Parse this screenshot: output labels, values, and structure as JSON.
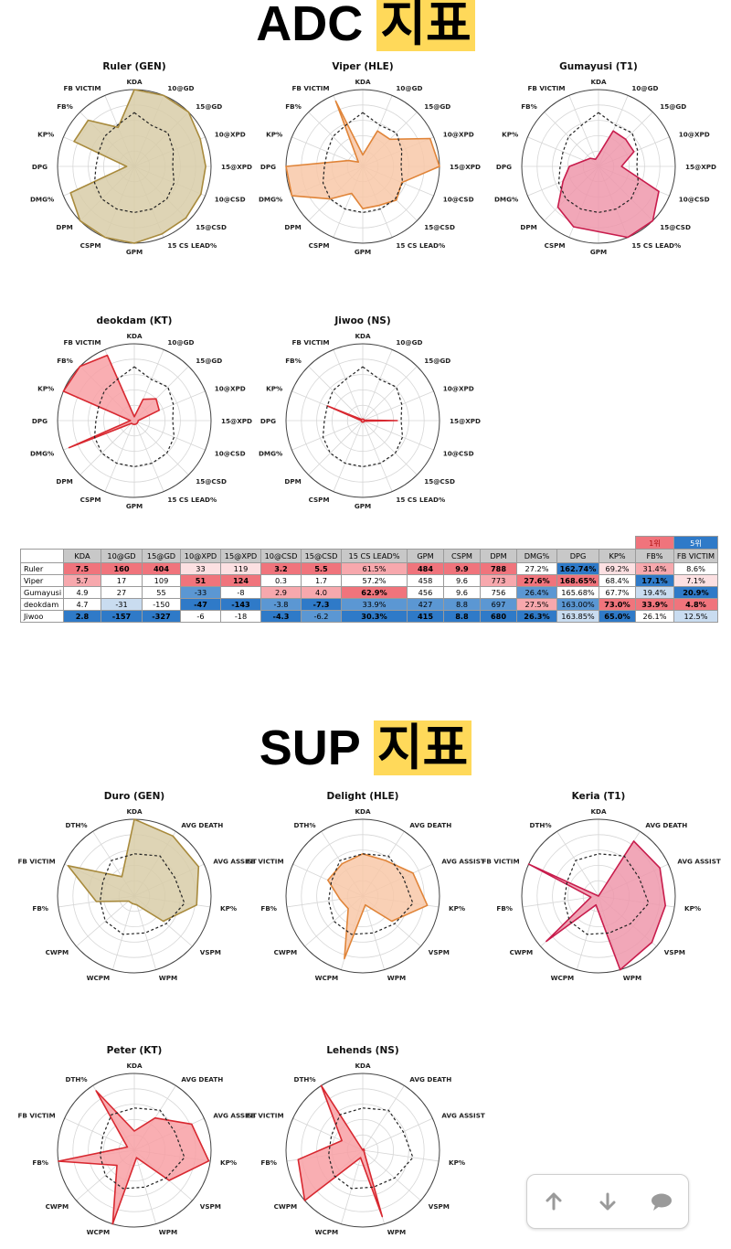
{
  "adc_title": {
    "latin": "ADC",
    "korean": "지표"
  },
  "sup_title": {
    "latin": "SUP",
    "korean": "지표"
  },
  "colors": {
    "gen": {
      "fill": "#d8cca8",
      "stroke": "#a88a3c"
    },
    "hle": {
      "fill": "#f8c8a8",
      "stroke": "#e08438"
    },
    "t1": {
      "fill": "#ee98ac",
      "stroke": "#c81c4c"
    },
    "kt": {
      "fill": "#f8a0a4",
      "stroke": "#d82830"
    },
    "ns": {
      "fill": "#f8a0a4",
      "stroke": "#d82830"
    },
    "rank1": "#f0747c",
    "rank5": "#2f7ac8",
    "header_bg": "#c8c8c8"
  },
  "chart_data": [
    {
      "type": "radar",
      "title": "Ruler (GEN)",
      "team": "gen",
      "axes": [
        "KDA",
        "10@GD",
        "15@GD",
        "10@XPD",
        "15@XPD",
        "10@CSD",
        "15@CSD",
        "15 CS LEAD%",
        "GPM",
        "CSPM",
        "DPM",
        "DMG%",
        "DPG",
        "KP%",
        "FB%",
        "FB VICTIM"
      ],
      "values": [
        1.0,
        1.0,
        1.0,
        0.93,
        0.93,
        0.94,
        0.95,
        0.95,
        1.0,
        1.0,
        1.0,
        0.9,
        0.1,
        0.85,
        0.85,
        0.55
      ],
      "average": [
        0.7,
        0.58,
        0.62,
        0.55,
        0.5,
        0.56,
        0.6,
        0.6,
        0.6,
        0.6,
        0.6,
        0.56,
        0.5,
        0.5,
        0.55,
        0.58
      ]
    },
    {
      "type": "radar",
      "title": "Viper (HLE)",
      "team": "hle",
      "axes": [
        "KDA",
        "10@GD",
        "15@GD",
        "10@XPD",
        "15@XPD",
        "10@CSD",
        "15@CSD",
        "15 CS LEAD%",
        "GPM",
        "CSPM",
        "DPM",
        "DMG%",
        "DPG",
        "KP%",
        "FB%",
        "FB VICTIM"
      ],
      "values": [
        0.15,
        0.5,
        0.5,
        0.95,
        1.0,
        0.55,
        0.62,
        0.55,
        0.55,
        0.38,
        0.6,
        1.0,
        1.0,
        0.2,
        0.08,
        0.92
      ],
      "average": [
        0.7,
        0.58,
        0.62,
        0.55,
        0.5,
        0.56,
        0.6,
        0.6,
        0.6,
        0.6,
        0.6,
        0.56,
        0.5,
        0.5,
        0.55,
        0.58
      ]
    },
    {
      "type": "radar",
      "title": "Gumayusi (T1)",
      "team": "t1",
      "axes": [
        "KDA",
        "10@GD",
        "15@GD",
        "10@XPD",
        "15@XPD",
        "10@CSD",
        "15@CSD",
        "15 CS LEAD%",
        "GPM",
        "CSPM",
        "DPM",
        "DMG%",
        "DPG",
        "KP%",
        "FB%",
        "FB VICTIM"
      ],
      "values": [
        0.15,
        0.5,
        0.5,
        0.5,
        0.3,
        0.85,
        1.0,
        1.0,
        0.85,
        0.85,
        0.75,
        0.5,
        0.38,
        0.2,
        0.15,
        0.1
      ],
      "average": [
        0.7,
        0.58,
        0.62,
        0.55,
        0.5,
        0.56,
        0.6,
        0.6,
        0.6,
        0.6,
        0.6,
        0.56,
        0.5,
        0.5,
        0.55,
        0.58
      ]
    },
    {
      "type": "radar",
      "title": "deokdam (KT)",
      "team": "kt",
      "axes": [
        "KDA",
        "10@GD",
        "15@GD",
        "10@XPD",
        "15@XPD",
        "10@CSD",
        "15@CSD",
        "15 CS LEAD%",
        "GPM",
        "CSPM",
        "DPM",
        "DMG%",
        "DPG",
        "KP%",
        "FB%",
        "FB VICTIM"
      ],
      "values": [
        0.05,
        0.3,
        0.4,
        0.35,
        0.05,
        0.05,
        0.05,
        0.05,
        0.05,
        0.05,
        0.05,
        0.92,
        0.05,
        1.0,
        1.0,
        0.92
      ],
      "average": [
        0.7,
        0.58,
        0.62,
        0.55,
        0.5,
        0.56,
        0.6,
        0.6,
        0.6,
        0.6,
        0.6,
        0.56,
        0.5,
        0.5,
        0.55,
        0.58
      ]
    },
    {
      "type": "radar",
      "title": "Jiwoo (NS)",
      "team": "ns",
      "axes": [
        "KDA",
        "10@GD",
        "15@GD",
        "10@XPD",
        "15@XPD",
        "10@CSD",
        "15@CSD",
        "15 CS LEAD%",
        "GPM",
        "CSPM",
        "DPM",
        "DMG%",
        "DPG",
        "KP%",
        "FB%",
        "FB VICTIM"
      ],
      "values": [
        0.02,
        0.02,
        0.02,
        0.02,
        0.45,
        0.02,
        0.02,
        0.02,
        0.02,
        0.02,
        0.02,
        0.02,
        0.02,
        0.5,
        0.02,
        0.02
      ],
      "average": [
        0.7,
        0.58,
        0.62,
        0.55,
        0.5,
        0.56,
        0.6,
        0.6,
        0.6,
        0.6,
        0.6,
        0.56,
        0.5,
        0.5,
        0.55,
        0.58
      ]
    },
    {
      "type": "radar",
      "title": "Duro (GEN)",
      "team": "gen",
      "axes": [
        "KDA",
        "AVG DEATH",
        "AVG ASSIST",
        "KP%",
        "VSPM",
        "WPM",
        "WCPM",
        "CWPM",
        "FB%",
        "FB VICTIM",
        "DTH%"
      ],
      "values": [
        1.0,
        0.93,
        0.92,
        0.82,
        0.5,
        0.12,
        0.1,
        0.1,
        0.5,
        0.95,
        0.3
      ],
      "average": [
        0.55,
        0.62,
        0.58,
        0.66,
        0.55,
        0.5,
        0.52,
        0.5,
        0.45,
        0.45,
        0.55
      ]
    },
    {
      "type": "radar",
      "title": "Delight (HLE)",
      "team": "hle",
      "axes": [
        "KDA",
        "AVG DEATH",
        "AVG ASSIST",
        "KP%",
        "VSPM",
        "WPM",
        "WCPM",
        "CWPM",
        "FB%",
        "FB VICTIM",
        "DTH%"
      ],
      "values": [
        0.55,
        0.55,
        0.72,
        0.85,
        0.5,
        0.12,
        0.85,
        0.25,
        0.3,
        0.5,
        0.5
      ],
      "average": [
        0.55,
        0.62,
        0.58,
        0.66,
        0.55,
        0.5,
        0.52,
        0.5,
        0.45,
        0.45,
        0.55
      ]
    },
    {
      "type": "radar",
      "title": "Keria (T1)",
      "team": "t1",
      "axes": [
        "KDA",
        "AVG DEATH",
        "AVG ASSIST",
        "KP%",
        "VSPM",
        "WPM",
        "WCPM",
        "CWPM",
        "FB%",
        "FB VICTIM",
        "DTH%"
      ],
      "values": [
        0.0,
        0.85,
        0.88,
        0.88,
        0.92,
        1.0,
        0.12,
        0.9,
        0.1,
        1.0,
        0.0
      ],
      "average": [
        0.55,
        0.62,
        0.58,
        0.66,
        0.55,
        0.5,
        0.52,
        0.5,
        0.45,
        0.45,
        0.55
      ]
    },
    {
      "type": "radar",
      "title": "Peter (KT)",
      "team": "kt",
      "axes": [
        "KDA",
        "AVG DEATH",
        "AVG ASSIST",
        "KP%",
        "VSPM",
        "WPM",
        "WCPM",
        "CWPM",
        "FB%",
        "FB VICTIM",
        "DTH%"
      ],
      "values": [
        0.25,
        0.5,
        0.82,
        0.98,
        0.6,
        0.1,
        1.0,
        0.3,
        1.0,
        0.1,
        0.92
      ],
      "average": [
        0.55,
        0.62,
        0.58,
        0.66,
        0.55,
        0.5,
        0.52,
        0.5,
        0.45,
        0.45,
        0.55
      ]
    },
    {
      "type": "radar",
      "title": "Lehends (NS)",
      "team": "ns",
      "axes": [
        "KDA",
        "AVG DEATH",
        "AVG ASSIST",
        "KP%",
        "VSPM",
        "WPM",
        "WCPM",
        "CWPM",
        "FB%",
        "FB VICTIM",
        "DTH%"
      ],
      "values": [
        0.0,
        0.02,
        0.02,
        0.02,
        0.02,
        0.9,
        0.1,
        1.0,
        0.85,
        0.3,
        1.0
      ],
      "average": [
        0.55,
        0.62,
        0.58,
        0.66,
        0.55,
        0.5,
        0.52,
        0.5,
        0.45,
        0.45,
        0.55
      ]
    },
    {
      "type": "table",
      "legend": {
        "rank1": "1위",
        "rank5": "5위"
      },
      "columns": [
        "",
        "KDA",
        "10@GD",
        "15@GD",
        "10@XPD",
        "15@XPD",
        "10@CSD",
        "15@CSD",
        "15 CS LEAD%",
        "GPM",
        "CSPM",
        "DPM",
        "DMG%",
        "DPG",
        "KP%",
        "FB%",
        "FB VICTIM"
      ],
      "rows": [
        {
          "name": "Ruler",
          "cells": [
            {
              "v": "7.5",
              "c": "#f0747c",
              "b": true
            },
            {
              "v": "160",
              "c": "#f0747c",
              "b": true
            },
            {
              "v": "404",
              "c": "#f0747c",
              "b": true
            },
            {
              "v": "33",
              "c": "#fce0e2",
              "b": false
            },
            {
              "v": "119",
              "c": "#fce0e2",
              "b": false
            },
            {
              "v": "3.2",
              "c": "#f0747c",
              "b": true
            },
            {
              "v": "5.5",
              "c": "#f0747c",
              "b": true
            },
            {
              "v": "61.5%",
              "c": "#f7a8ad",
              "b": false
            },
            {
              "v": "484",
              "c": "#f0747c",
              "b": true
            },
            {
              "v": "9.9",
              "c": "#f0747c",
              "b": true
            },
            {
              "v": "788",
              "c": "#f0747c",
              "b": true
            },
            {
              "v": "27.2%",
              "c": "#ffffff",
              "b": false
            },
            {
              "v": "162.74%",
              "c": "#2f7ac8",
              "b": true
            },
            {
              "v": "69.2%",
              "c": "#fce0e2",
              "b": false
            },
            {
              "v": "31.4%",
              "c": "#f7a8ad",
              "b": false
            },
            {
              "v": "8.6%",
              "c": "#ffffff",
              "b": false
            }
          ]
        },
        {
          "name": "Viper",
          "cells": [
            {
              "v": "5.7",
              "c": "#f7a8ad",
              "b": false
            },
            {
              "v": "17",
              "c": "#ffffff",
              "b": false
            },
            {
              "v": "109",
              "c": "#ffffff",
              "b": false
            },
            {
              "v": "51",
              "c": "#f0747c",
              "b": true
            },
            {
              "v": "124",
              "c": "#f0747c",
              "b": true
            },
            {
              "v": "0.3",
              "c": "#ffffff",
              "b": false
            },
            {
              "v": "1.7",
              "c": "#ffffff",
              "b": false
            },
            {
              "v": "57.2%",
              "c": "#ffffff",
              "b": false
            },
            {
              "v": "458",
              "c": "#ffffff",
              "b": false
            },
            {
              "v": "9.6",
              "c": "#ffffff",
              "b": false
            },
            {
              "v": "773",
              "c": "#f7a8ad",
              "b": false
            },
            {
              "v": "27.6%",
              "c": "#f0747c",
              "b": true
            },
            {
              "v": "168.65%",
              "c": "#f0747c",
              "b": true
            },
            {
              "v": "68.4%",
              "c": "#ffffff",
              "b": false
            },
            {
              "v": "17.1%",
              "c": "#2f7ac8",
              "b": true
            },
            {
              "v": "7.1%",
              "c": "#fce0e2",
              "b": false
            }
          ]
        },
        {
          "name": "Gumayusi",
          "cells": [
            {
              "v": "4.9",
              "c": "#ffffff",
              "b": false
            },
            {
              "v": "27",
              "c": "#ffffff",
              "b": false
            },
            {
              "v": "55",
              "c": "#ffffff",
              "b": false
            },
            {
              "v": "-33",
              "c": "#5b97d3",
              "b": false
            },
            {
              "v": "-8",
              "c": "#ffffff",
              "b": false
            },
            {
              "v": "2.9",
              "c": "#f7a8ad",
              "b": false
            },
            {
              "v": "4.0",
              "c": "#f7a8ad",
              "b": false
            },
            {
              "v": "62.9%",
              "c": "#f0747c",
              "b": true
            },
            {
              "v": "456",
              "c": "#ffffff",
              "b": false
            },
            {
              "v": "9.6",
              "c": "#ffffff",
              "b": false
            },
            {
              "v": "756",
              "c": "#ffffff",
              "b": false
            },
            {
              "v": "26.4%",
              "c": "#5b97d3",
              "b": false
            },
            {
              "v": "165.68%",
              "c": "#ffffff",
              "b": false
            },
            {
              "v": "67.7%",
              "c": "#ffffff",
              "b": false
            },
            {
              "v": "19.4%",
              "c": "#c9dcf0",
              "b": false
            },
            {
              "v": "20.9%",
              "c": "#2f7ac8",
              "b": true
            }
          ]
        },
        {
          "name": "deokdam",
          "cells": [
            {
              "v": "4.7",
              "c": "#ffffff",
              "b": false
            },
            {
              "v": "-31",
              "c": "#c9dcf0",
              "b": false
            },
            {
              "v": "-150",
              "c": "#ffffff",
              "b": false
            },
            {
              "v": "-47",
              "c": "#2f7ac8",
              "b": true
            },
            {
              "v": "-143",
              "c": "#2f7ac8",
              "b": true
            },
            {
              "v": "-3.8",
              "c": "#5b97d3",
              "b": false
            },
            {
              "v": "-7.3",
              "c": "#2f7ac8",
              "b": true
            },
            {
              "v": "33.9%",
              "c": "#5b97d3",
              "b": false
            },
            {
              "v": "427",
              "c": "#5b97d3",
              "b": false
            },
            {
              "v": "8.8",
              "c": "#5b97d3",
              "b": false
            },
            {
              "v": "697",
              "c": "#5b97d3",
              "b": false
            },
            {
              "v": "27.5%",
              "c": "#f7a8ad",
              "b": false
            },
            {
              "v": "163.00%",
              "c": "#5b97d3",
              "b": false
            },
            {
              "v": "73.0%",
              "c": "#f0747c",
              "b": true
            },
            {
              "v": "33.9%",
              "c": "#f0747c",
              "b": true
            },
            {
              "v": "4.8%",
              "c": "#f0747c",
              "b": true
            }
          ]
        },
        {
          "name": "Jiwoo",
          "cells": [
            {
              "v": "2.8",
              "c": "#2f7ac8",
              "b": true
            },
            {
              "v": "-157",
              "c": "#2f7ac8",
              "b": true
            },
            {
              "v": "-327",
              "c": "#2f7ac8",
              "b": true
            },
            {
              "v": "-6",
              "c": "#ffffff",
              "b": false
            },
            {
              "v": "-18",
              "c": "#ffffff",
              "b": false
            },
            {
              "v": "-4.3",
              "c": "#2f7ac8",
              "b": true
            },
            {
              "v": "-6.2",
              "c": "#5b97d3",
              "b": false
            },
            {
              "v": "30.3%",
              "c": "#2f7ac8",
              "b": true
            },
            {
              "v": "415",
              "c": "#2f7ac8",
              "b": true
            },
            {
              "v": "8.8",
              "c": "#2f7ac8",
              "b": true
            },
            {
              "v": "680",
              "c": "#2f7ac8",
              "b": true
            },
            {
              "v": "26.3%",
              "c": "#2f7ac8",
              "b": true
            },
            {
              "v": "163.85%",
              "c": "#c9dcf0",
              "b": false
            },
            {
              "v": "65.0%",
              "c": "#2f7ac8",
              "b": true
            },
            {
              "v": "26.1%",
              "c": "#ffffff",
              "b": false
            },
            {
              "v": "12.5%",
              "c": "#c9dcf0",
              "b": false
            }
          ]
        }
      ]
    }
  ],
  "scroll_widget": {
    "up_icon": "arrow-up-icon",
    "down_icon": "arrow-down-icon",
    "comment_icon": "comment-icon"
  }
}
